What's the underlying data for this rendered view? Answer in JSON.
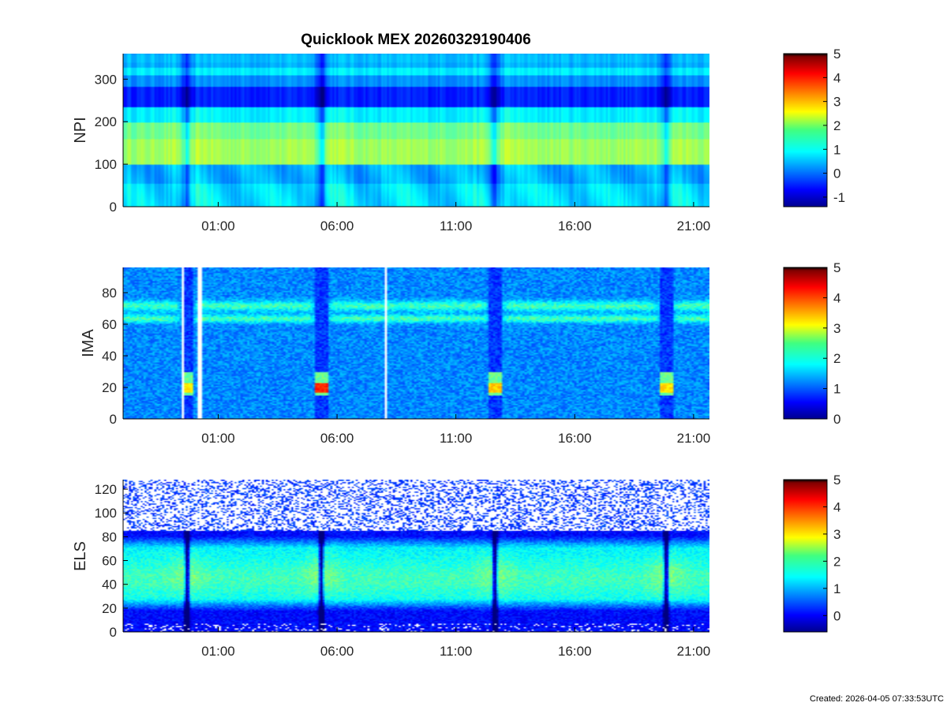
{
  "figure": {
    "title": "Quicklook MEX 20260329190406",
    "created": "Created: 2026-04-05 07:33:53UTC"
  },
  "chart_data": [
    {
      "type": "heatmap",
      "title": "Quicklook MEX 20260329190406",
      "ylabel": "NPI",
      "ylim": [
        0,
        360
      ],
      "yticks": [
        0,
        100,
        200,
        300
      ],
      "xticks": [
        "01:00",
        "06:00",
        "11:00",
        "16:00",
        "21:00"
      ],
      "x_time_range": [
        "21:00",
        "21:40"
      ],
      "colorbar": {
        "clim": [
          -1.4,
          5
        ],
        "ticks": [
          -1,
          0,
          1,
          2,
          3,
          4,
          5
        ]
      },
      "colormap": "jet",
      "features": {
        "horizontal_bands": [
          {
            "y": [
              340,
              360
            ],
            "level": 0.6
          },
          {
            "y": [
              310,
              330
            ],
            "level": 0.9
          },
          {
            "y": [
              285,
              310
            ],
            "level": 0.3
          },
          {
            "y": [
              235,
              285
            ],
            "level": -0.4
          },
          {
            "y": [
              200,
              235
            ],
            "level": 0.9
          },
          {
            "y": [
              160,
              200
            ],
            "level": 1.7
          },
          {
            "y": [
              100,
              160
            ],
            "level": 2.0
          },
          {
            "y": [
              55,
              100
            ],
            "level": 0.5
          },
          {
            "y": [
              0,
              55
            ],
            "level": 0.8
          }
        ]
      }
    },
    {
      "type": "heatmap",
      "ylabel": "IMA",
      "ylim": [
        0,
        96
      ],
      "yticks": [
        0,
        20,
        40,
        60,
        80
      ],
      "xticks": [
        "01:00",
        "06:00",
        "11:00",
        "16:00",
        "21:00"
      ],
      "colorbar": {
        "clim": [
          0,
          5
        ],
        "ticks": [
          0,
          1,
          2,
          3,
          4,
          5
        ]
      },
      "colormap": "jet",
      "features": {
        "background_level": 1.3,
        "ion_band_upper_y": 72,
        "ion_band_lower_y": 64,
        "band_level": 2.2,
        "peak_y": 20,
        "peak_levels": [
          3.3,
          4.3,
          3.5,
          3.4
        ],
        "gap_times": [
          "23:30",
          "00:10",
          "08:00"
        ]
      }
    },
    {
      "type": "heatmap",
      "ylabel": "ELS",
      "ylim": [
        0,
        128
      ],
      "yticks": [
        0,
        20,
        40,
        60,
        80,
        100,
        120
      ],
      "xticks": [
        "01:00",
        "06:00",
        "11:00",
        "16:00",
        "21:00"
      ],
      "colorbar": {
        "clim": [
          -0.6,
          5
        ],
        "ticks": [
          0,
          1,
          2,
          3,
          4,
          5
        ]
      },
      "colormap": "jet",
      "features": {
        "electron_band_y": [
          25,
          75
        ],
        "band_level": 2.0,
        "core_y": 45,
        "noise_above_y": 85
      }
    }
  ]
}
